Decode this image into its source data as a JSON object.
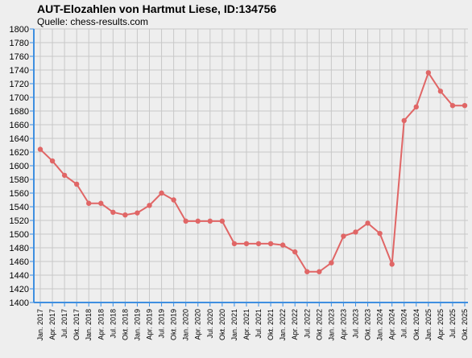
{
  "header": {
    "title": "AUT-Elozahlen von Hartmut Liese, ID:134756",
    "subtitle": "Quelle: chess-results.com"
  },
  "colors": {
    "background": "#eeeeee",
    "grid": "#c8c8c8",
    "axis": "#3f8fe0",
    "line": "#e06666"
  },
  "chart_data": {
    "type": "line",
    "title": "AUT-Elozahlen von Hartmut Liese, ID:134756",
    "subtitle": "Quelle: chess-results.com",
    "xlabel": "",
    "ylabel": "",
    "ylim": [
      1400,
      1800
    ],
    "y_ticks": [
      1400,
      1420,
      1440,
      1460,
      1480,
      1500,
      1520,
      1540,
      1560,
      1580,
      1600,
      1620,
      1640,
      1660,
      1680,
      1700,
      1720,
      1740,
      1760,
      1780,
      1800
    ],
    "grid": true,
    "legend": "none",
    "categories": [
      "Jan. 2017",
      "Apr. 2017",
      "Jul. 2017",
      "Okt. 2017",
      "Jan. 2018",
      "Apr. 2018",
      "Jul. 2018",
      "Okt. 2018",
      "Jan. 2019",
      "Apr. 2019",
      "Jul. 2019",
      "Okt. 2019",
      "Jan. 2020",
      "Apr. 2020",
      "Jul. 2020",
      "Okt. 2020",
      "Jan. 2021",
      "Apr. 2021",
      "Jul. 2021",
      "Okt. 2021",
      "Jan. 2022",
      "Apr. 2022",
      "Jul. 2022",
      "Okt. 2022",
      "Jan. 2023",
      "Apr. 2023",
      "Jul. 2023",
      "Okt. 2023",
      "Jan. 2024",
      "Apr. 2024",
      "Jul. 2024",
      "Okt. 2024",
      "Jan. 2025",
      "Apr. 2025",
      "Jul. 2025",
      "Okt. 2025"
    ],
    "values": [
      1624,
      1607,
      1586,
      1573,
      1545,
      1545,
      1532,
      1528,
      1531,
      1542,
      1560,
      1550,
      1519,
      1519,
      1519,
      1519,
      1486,
      1486,
      1486,
      1486,
      1484,
      1474,
      1445,
      1445,
      1458,
      1497,
      1503,
      1516,
      1501,
      1456,
      1666,
      1686,
      1736,
      1709,
      1688,
      1688
    ]
  }
}
